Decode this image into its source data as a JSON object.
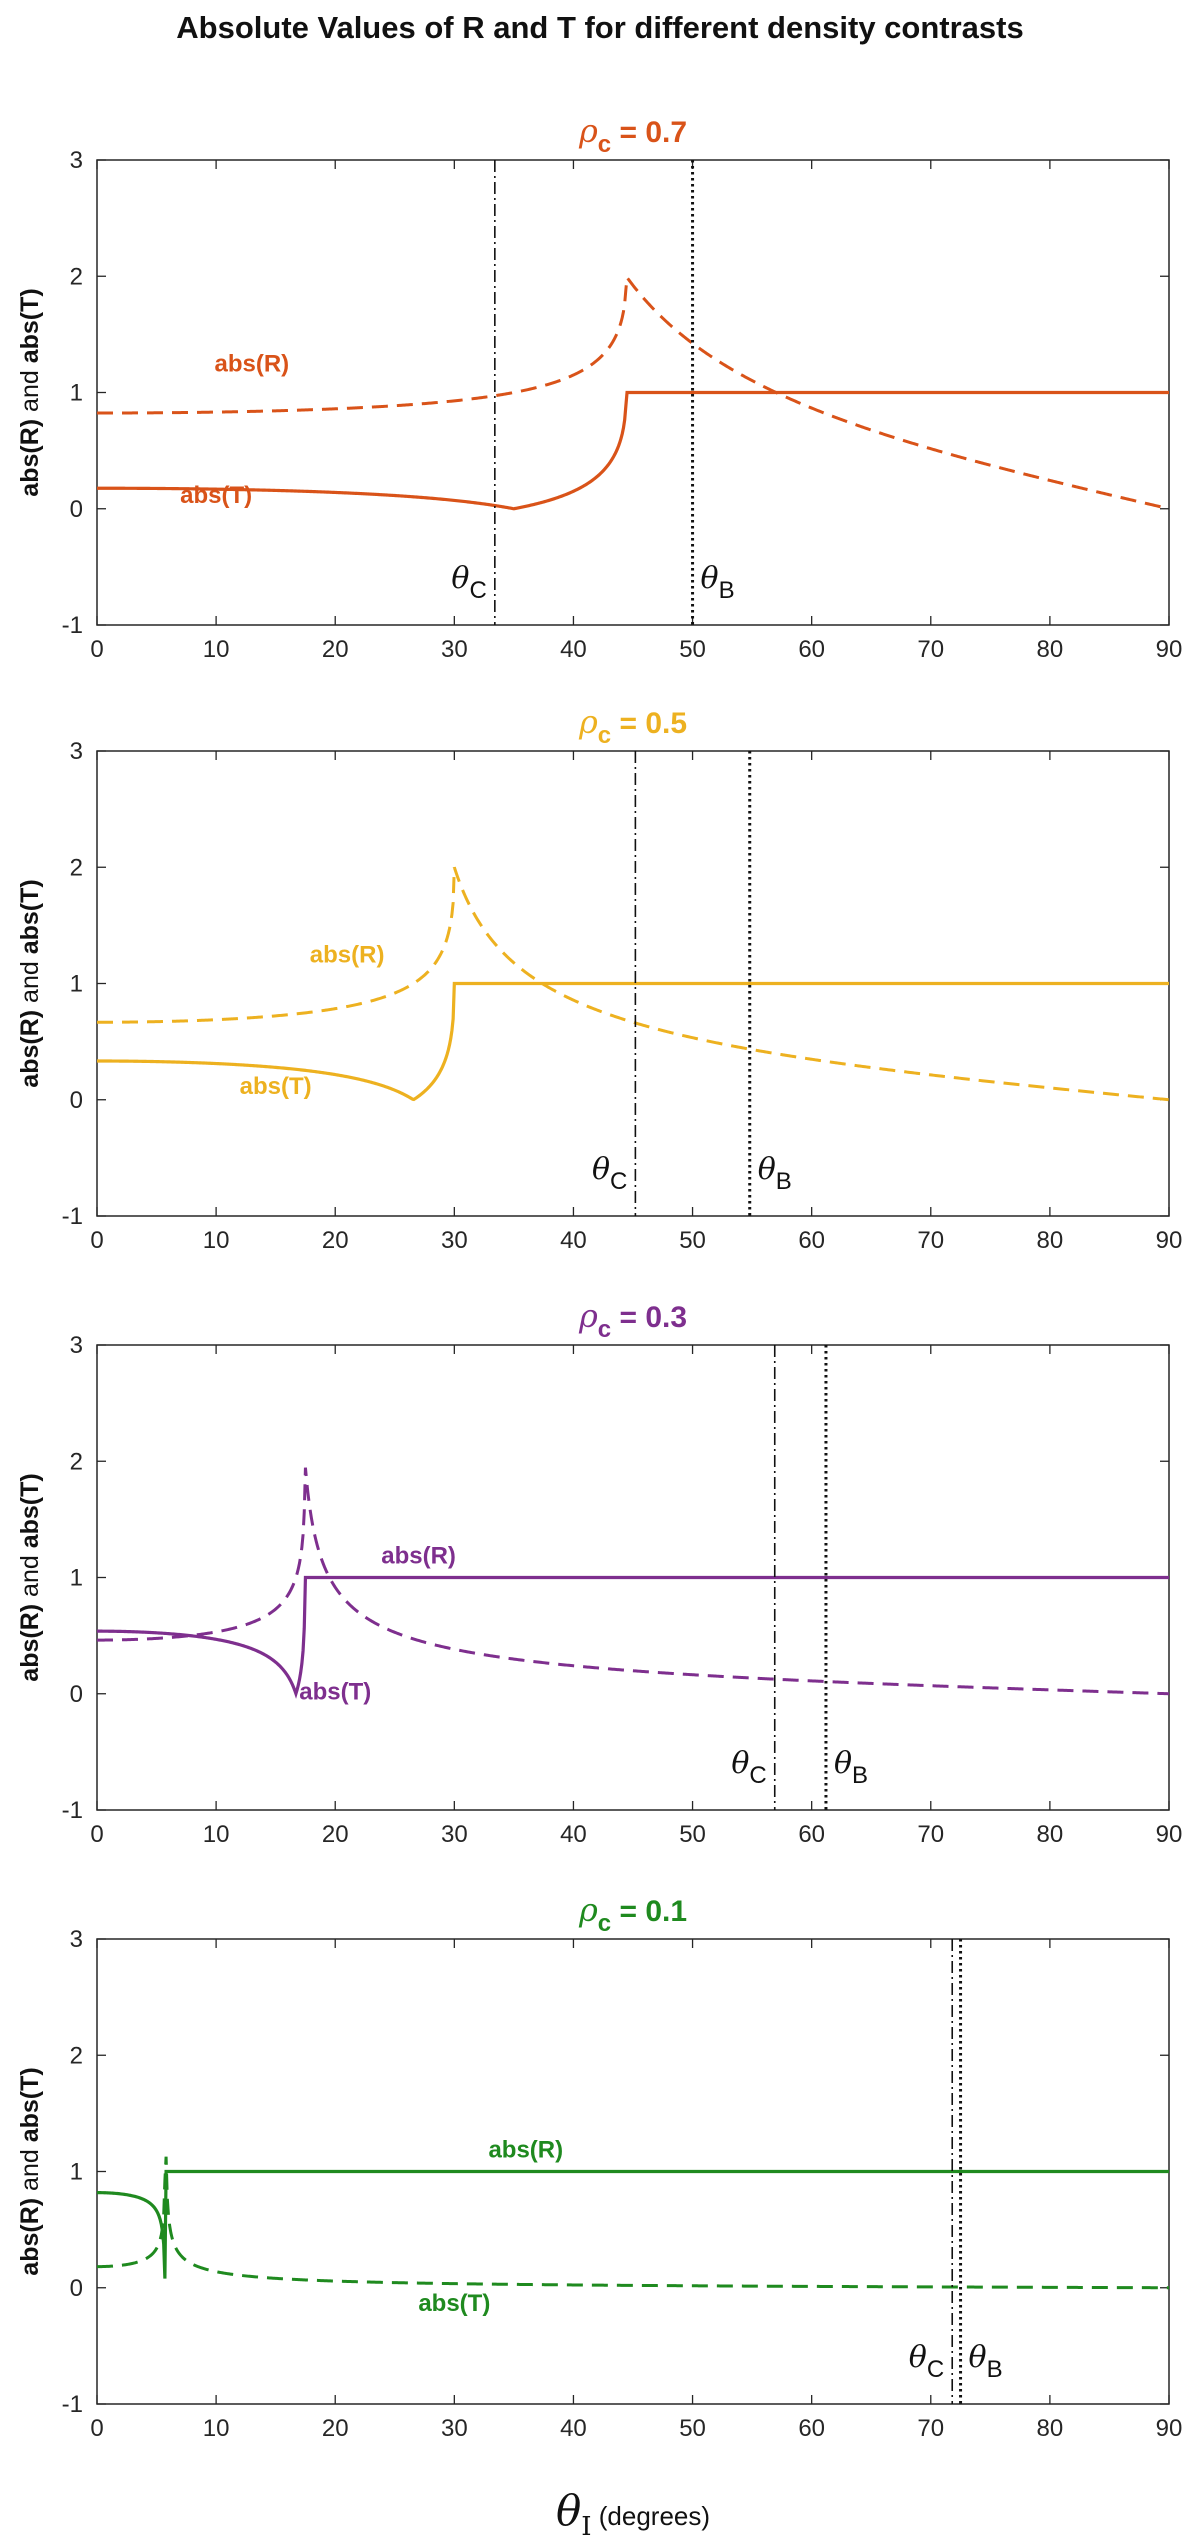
{
  "figure": {
    "title": "Absolute Values of R and T for different density contrasts",
    "x_symbol": "θ",
    "x_symbol_sub": "I",
    "x_units": "(degrees)"
  },
  "chart_data": [
    {
      "type": "line",
      "title_symbol": "ρ",
      "title_sub": "c",
      "title_value": "= 0.7",
      "color": "#D95319",
      "xlabel": "θI (degrees)",
      "ylabel": "abs(R) and abs(T)",
      "xlim": [
        0,
        90
      ],
      "ylim": [
        -1,
        3
      ],
      "xticks": [
        0,
        10,
        20,
        30,
        40,
        50,
        60,
        70,
        80,
        90
      ],
      "yticks": [
        -1,
        0,
        1,
        2,
        3
      ],
      "rho_c": 0.7,
      "theta_c": 33.4,
      "theta_b": 50.0,
      "series": [
        {
          "name": "abs(R)",
          "style": "solid",
          "label_x": 13,
          "label_y": 1.18
        },
        {
          "name": "abs(T)",
          "style": "dashed",
          "label_x": 10,
          "label_y": 0.05
        }
      ],
      "vlines": [
        {
          "x": 33.4,
          "style": "dashdot",
          "sym": "θ",
          "sub": "C",
          "side": "left"
        },
        {
          "x": 50.0,
          "style": "dotted",
          "sym": "θ",
          "sub": "B",
          "side": "right"
        }
      ]
    },
    {
      "type": "line",
      "title_symbol": "ρ",
      "title_sub": "c",
      "title_value": "= 0.5",
      "color": "#EDB120",
      "xlabel": "θI (degrees)",
      "ylabel": "abs(R) and abs(T)",
      "xlim": [
        0,
        90
      ],
      "ylim": [
        -1,
        3
      ],
      "xticks": [
        0,
        10,
        20,
        30,
        40,
        50,
        60,
        70,
        80,
        90
      ],
      "yticks": [
        -1,
        0,
        1,
        2,
        3
      ],
      "rho_c": 0.5,
      "theta_c": 45.2,
      "theta_b": 54.8,
      "series": [
        {
          "name": "abs(R)",
          "style": "solid",
          "label_x": 21,
          "label_y": 1.18
        },
        {
          "name": "abs(T)",
          "style": "dashed",
          "label_x": 15,
          "label_y": 0.05
        }
      ],
      "vlines": [
        {
          "x": 45.2,
          "style": "dashdot",
          "sym": "θ",
          "sub": "C",
          "side": "left"
        },
        {
          "x": 54.8,
          "style": "dotted",
          "sym": "θ",
          "sub": "B",
          "side": "right"
        }
      ]
    },
    {
      "type": "line",
      "title_symbol": "ρ",
      "title_sub": "c",
      "title_value": "= 0.3",
      "color": "#7E2F8E",
      "xlabel": "θI (degrees)",
      "ylabel": "abs(R) and abs(T)",
      "xlim": [
        0,
        90
      ],
      "ylim": [
        -1,
        3
      ],
      "xticks": [
        0,
        10,
        20,
        30,
        40,
        50,
        60,
        70,
        80,
        90
      ],
      "yticks": [
        -1,
        0,
        1,
        2,
        3
      ],
      "rho_c": 0.3,
      "theta_c": 56.9,
      "theta_b": 61.2,
      "series": [
        {
          "name": "abs(R)",
          "style": "solid",
          "label_x": 27,
          "label_y": 1.12
        },
        {
          "name": "abs(T)",
          "style": "dashed",
          "label_x": 20,
          "label_y": -0.05
        }
      ],
      "vlines": [
        {
          "x": 56.9,
          "style": "dashdot",
          "sym": "θ",
          "sub": "C",
          "side": "left"
        },
        {
          "x": 61.2,
          "style": "dotted",
          "sym": "θ",
          "sub": "B",
          "side": "right"
        }
      ]
    },
    {
      "type": "line",
      "title_symbol": "ρ",
      "title_sub": "c",
      "title_value": "= 0.1",
      "color": "#1F8A1F",
      "xlabel": "θI (degrees)",
      "ylabel": "abs(R) and abs(T)",
      "xlim": [
        0,
        90
      ],
      "ylim": [
        -1,
        3
      ],
      "xticks": [
        0,
        10,
        20,
        30,
        40,
        50,
        60,
        70,
        80,
        90
      ],
      "yticks": [
        -1,
        0,
        1,
        2,
        3
      ],
      "rho_c": 0.1,
      "theta_c": 71.8,
      "theta_b": 72.5,
      "series": [
        {
          "name": "abs(R)",
          "style": "solid",
          "label_x": 36,
          "label_y": 1.12
        },
        {
          "name": "abs(T)",
          "style": "dashed",
          "label_x": 30,
          "label_y": -0.2
        }
      ],
      "vlines": [
        {
          "x": 71.8,
          "style": "dashdot",
          "sym": "θ",
          "sub": "C",
          "side": "left"
        },
        {
          "x": 72.5,
          "style": "dotted",
          "sym": "θ",
          "sub": "B",
          "side": "right"
        }
      ]
    }
  ]
}
